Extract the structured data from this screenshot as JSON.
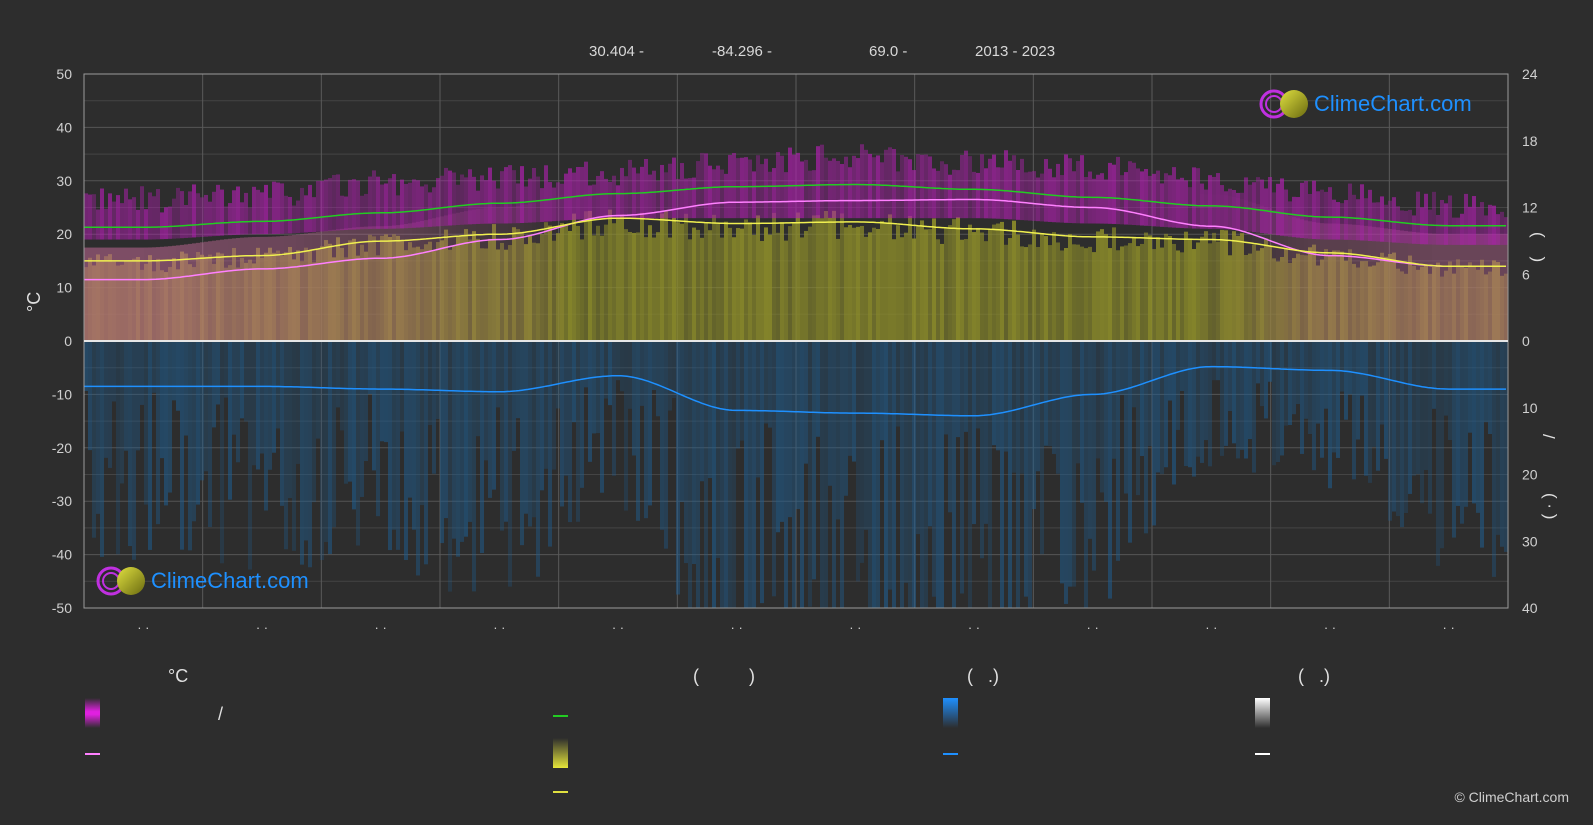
{
  "header": {
    "lat": "30.404 -",
    "lon": "-84.296 -",
    "elev": "69.0 -",
    "years": "2013 - 2023"
  },
  "axes": {
    "left_unit": "°C",
    "right_upper_label": "(    )",
    "right_slash": "/",
    "right_lower_label": "( · )",
    "x_ticks": [
      "· ·",
      "· ·",
      "· ·",
      "· ·",
      "· ·",
      "· ·",
      "· ·",
      "· ·",
      "· ·",
      "· ·",
      "· ·",
      "· ·"
    ]
  },
  "legend": {
    "col1_title": "°C",
    "col1_slash": "/",
    "col2_title": "(          )",
    "col3_title": "(   .)",
    "col4_title": "(   .)"
  },
  "brand": {
    "name": "ClimeChart.com",
    "copyright": "© ClimeChart.com"
  },
  "colors": {
    "background": "#2d2d2d",
    "temp_range": "#d020d0",
    "daylight": "#22cc22",
    "sunshine": "#d8d840",
    "rain": "#1a6fb0",
    "brand_blue": "#1e90ff"
  },
  "chart_data": {
    "type": "area",
    "months": 12,
    "y_left": {
      "min": -50,
      "max": 50,
      "ticks": [
        50,
        40,
        30,
        20,
        10,
        0,
        -10,
        -20,
        -30,
        -40,
        -50
      ]
    },
    "y_right_top": {
      "min": 0,
      "max": 24,
      "ticks": [
        24,
        18,
        12,
        6,
        0
      ]
    },
    "y_right_bottom": {
      "min": 0,
      "max": 40,
      "ticks": [
        0,
        10,
        20,
        30,
        40
      ]
    },
    "series": [
      {
        "values": [
          21.3,
          22.4,
          24.0,
          25.8,
          27.6,
          28.9,
          29.3,
          28.4,
          26.9,
          25.3,
          23.2,
          21.6
        ]
      },
      {
        "values": [
          11.5,
          13.5,
          15.5,
          19.0,
          23.5,
          26.0,
          26.3,
          26.5,
          25.0,
          21.5,
          16.0,
          14.0
        ]
      },
      {
        "values": [
          15.0,
          16.0,
          18.7,
          20.0,
          23.0,
          22.0,
          22.3,
          21.0,
          19.5,
          19.0,
          16.5,
          14.0
        ]
      },
      {
        "values": [
          -8.5,
          -8.5,
          -9.0,
          -9.5,
          -6.5,
          -13.0,
          -13.5,
          -14.0,
          -10.0,
          -4.8,
          -5.5,
          -9.0
        ]
      }
    ],
    "temp_band_top": [
      24,
      25,
      27,
      28,
      29,
      31,
      32,
      31,
      30,
      28,
      25,
      23
    ],
    "temp_band_bottom": [
      19,
      20,
      21,
      22,
      23,
      23,
      23,
      23,
      22,
      21,
      19,
      18
    ]
  }
}
